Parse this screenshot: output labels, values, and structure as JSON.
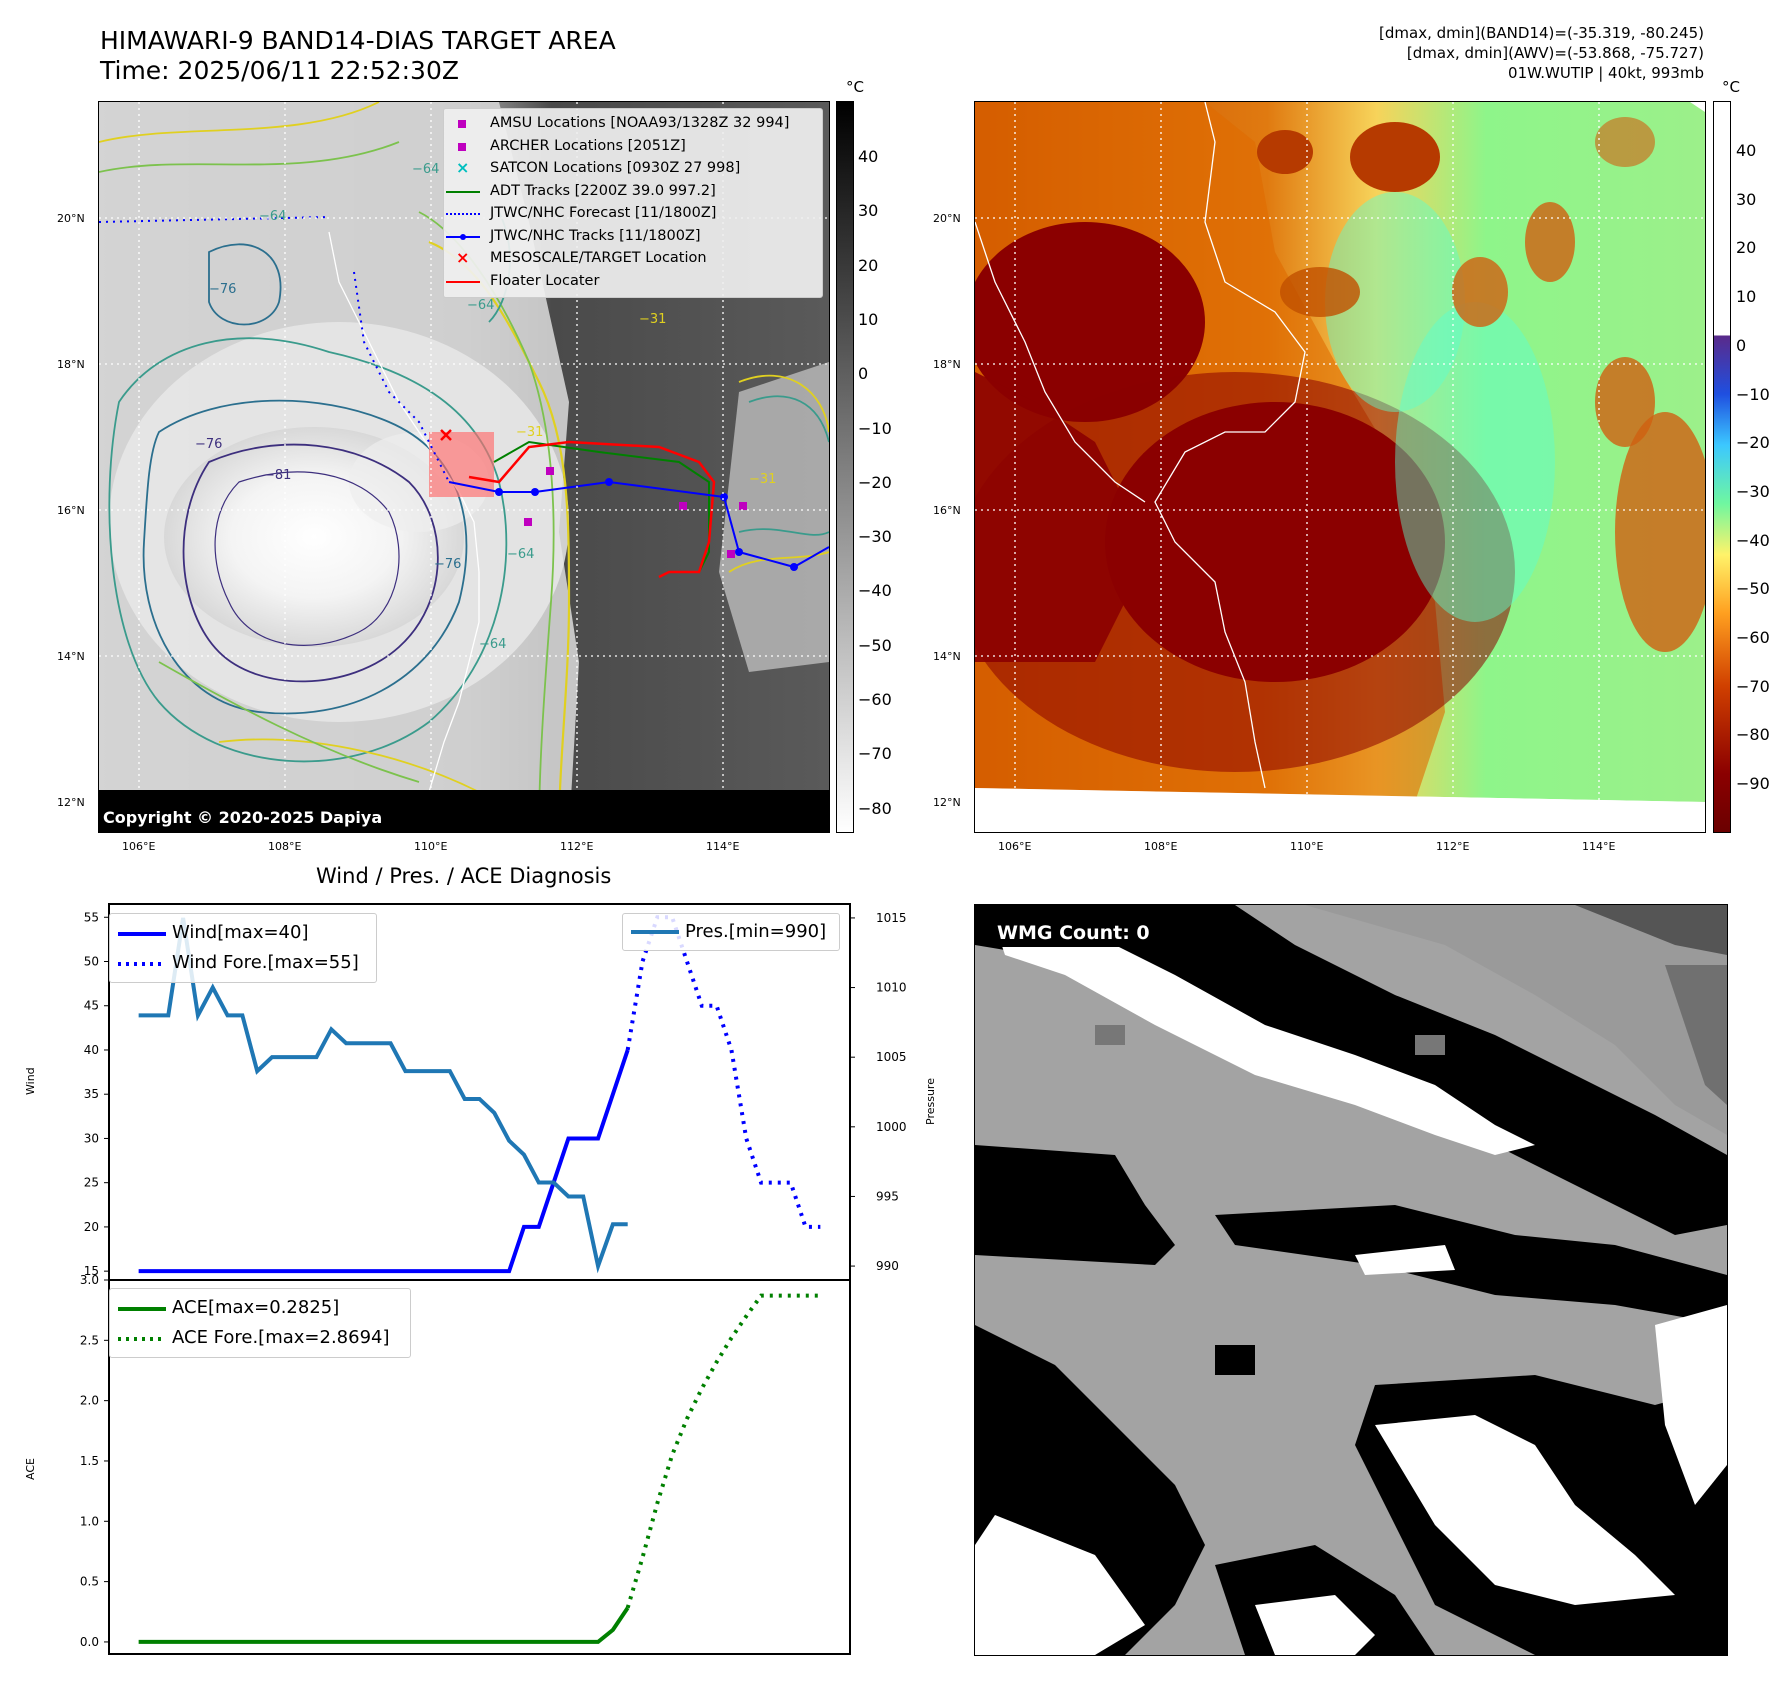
{
  "panel_ir": {
    "title_line1": "HIMAWARI-9 BAND14-DIAS TARGET AREA",
    "title_line2": "Time: 2025/06/11 22:52:30Z",
    "copyright": "Copyright © 2020-2025 Dapiya",
    "colorbar_unit": "°C",
    "colorbar_ticks": [
      "40",
      "30",
      "20",
      "10",
      "0",
      "−10",
      "−20",
      "−30",
      "−40",
      "−50",
      "−60",
      "−70",
      "−80"
    ],
    "lat_labels": [
      "20°N",
      "18°N",
      "16°N",
      "14°N",
      "12°N"
    ],
    "lon_labels": [
      "106°E",
      "108°E",
      "110°E",
      "112°E",
      "114°E"
    ],
    "contour_labels": [
      "−64",
      "−64",
      "−64",
      "−76",
      "−81",
      "−76",
      "−64",
      "−31",
      "−31",
      "−31",
      "−64",
      "−76"
    ],
    "legend": [
      {
        "label": "AMSU Locations [NOAA93/1328Z 32 994]",
        "marker": "square",
        "color": "#bf00bf"
      },
      {
        "label": "ARCHER Locations [2051Z]",
        "marker": "square",
        "color": "#bf00bf"
      },
      {
        "label": "SATCON Locations [0930Z 27 998]",
        "marker": "x",
        "color": "#00bfbf"
      },
      {
        "label": "ADT Tracks [2200Z 39.0 997.2]",
        "marker": "line",
        "color": "#008000"
      },
      {
        "label": "JTWC/NHC Forecast [11/1800Z]",
        "marker": "dotted",
        "color": "#0000ff"
      },
      {
        "label": "JTWC/NHC Tracks [11/1800Z]",
        "marker": "line-dot",
        "color": "#0000ff"
      },
      {
        "label": "MESOSCALE/TARGET Location",
        "marker": "x",
        "color": "#ff0000"
      },
      {
        "label": "Floater Locater",
        "marker": "line",
        "color": "#ff0000"
      }
    ]
  },
  "panel_awv": {
    "info_line1": "[dmax, dmin](BAND14)=(-35.319, -80.245)",
    "info_line2": "[dmax, dmin](AWV)=(-53.868, -75.727)",
    "info_line3": "01W.WUTIP | 40kt, 993mb",
    "colorbar_unit": "°C",
    "colorbar_ticks": [
      "40",
      "30",
      "20",
      "10",
      "0",
      "−10",
      "−20",
      "−30",
      "−40",
      "−50",
      "−60",
      "−70",
      "−80",
      "−90"
    ],
    "lat_labels": [
      "20°N",
      "18°N",
      "16°N",
      "14°N",
      "12°N"
    ],
    "lon_labels": [
      "106°E",
      "108°E",
      "110°E",
      "112°E",
      "114°E"
    ]
  },
  "panel_wmg": {
    "count_label": "WMG Count: 0"
  },
  "colors": {
    "wind": "#0000ff",
    "pressure": "#1f77b4",
    "ace": "#008000"
  },
  "chart_data": [
    {
      "type": "line",
      "title": "Wind / Pres. / ACE Diagnosis",
      "ylabel": "Wind",
      "y2label": "Pressure",
      "ylim": [
        14,
        56.5
      ],
      "y2lim": [
        989,
        1016
      ],
      "yticks": [
        15,
        20,
        25,
        30,
        35,
        40,
        45,
        50,
        55
      ],
      "y2ticks": [
        990,
        995,
        1000,
        1005,
        1010,
        1015
      ],
      "series": [
        {
          "name": "Wind[max=40]",
          "axis": "left",
          "style": "solid",
          "x": [
            0,
            1,
            2,
            3,
            4,
            5,
            6,
            7,
            8,
            9,
            10,
            11,
            12,
            13,
            14,
            15,
            16,
            17,
            18,
            19,
            20,
            21,
            22,
            23,
            24,
            25,
            26,
            27,
            28,
            29,
            30,
            31,
            32,
            33
          ],
          "values": [
            15,
            15,
            15,
            15,
            15,
            15,
            15,
            15,
            15,
            15,
            15,
            15,
            15,
            15,
            15,
            15,
            15,
            15,
            15,
            15,
            15,
            15,
            15,
            15,
            15,
            15,
            20,
            20,
            25,
            30,
            30,
            30,
            35,
            40
          ]
        },
        {
          "name": "Wind Fore.[max=55]",
          "axis": "left",
          "style": "dotted",
          "x": [
            33,
            34,
            35,
            36,
            37,
            38,
            39,
            40,
            41,
            42,
            43,
            44,
            45,
            46
          ],
          "values": [
            40,
            50,
            55,
            55,
            50,
            45,
            45,
            40,
            30,
            25,
            25,
            25,
            20,
            20
          ]
        },
        {
          "name": "Pres.[min=990]",
          "axis": "right",
          "style": "solid",
          "x": [
            0,
            1,
            2,
            3,
            4,
            5,
            6,
            7,
            8,
            9,
            10,
            11,
            12,
            13,
            14,
            15,
            16,
            17,
            18,
            19,
            20,
            21,
            22,
            23,
            24,
            25,
            26,
            27,
            28,
            29,
            30,
            31,
            32,
            33
          ],
          "values": [
            1008,
            1008,
            1008,
            1015,
            1008,
            1010,
            1008,
            1008,
            1004,
            1005,
            1005,
            1005,
            1005,
            1007,
            1006,
            1006,
            1006,
            1006,
            1004,
            1004,
            1004,
            1004,
            1002,
            1002,
            1001,
            999,
            998,
            996,
            996,
            995,
            995,
            990,
            993,
            993
          ]
        }
      ]
    },
    {
      "type": "line",
      "ylabel": "ACE",
      "ylim": [
        -0.1,
        3.0
      ],
      "yticks": [
        "0.0",
        "0.5",
        "1.0",
        "1.5",
        "2.0",
        "2.5",
        "3.0"
      ],
      "series": [
        {
          "name": "ACE[max=0.2825]",
          "style": "solid",
          "x": [
            0,
            31,
            32,
            33
          ],
          "values": [
            0,
            0,
            0.1,
            0.2825
          ]
        },
        {
          "name": "ACE Fore.[max=2.8694]",
          "style": "dotted",
          "x": [
            33,
            34,
            35,
            36,
            37,
            38,
            39,
            40,
            41,
            42,
            43,
            44,
            45,
            46
          ],
          "values": [
            0.2825,
            0.7,
            1.15,
            1.55,
            1.85,
            2.1,
            2.32,
            2.52,
            2.7,
            2.87,
            2.87,
            2.87,
            2.87,
            2.87
          ]
        }
      ]
    }
  ]
}
